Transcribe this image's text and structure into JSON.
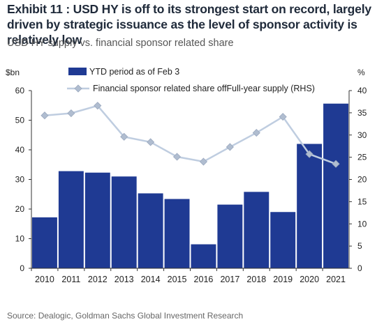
{
  "header": {
    "title": "Exhibit 11 : USD HY is off to its strongest start on record, largely driven by strategic issuance as the level of sponsor activity is relatively low",
    "subtitle": "USD HY supply vs. financial sponsor related share"
  },
  "footer": {
    "source": "Source: Dealogic, Goldman Sachs Global Investment Research"
  },
  "colors": {
    "bar": "#1f3a93",
    "line": "#bfcde0",
    "marker": "#b0bdd0"
  },
  "chart_data": {
    "type": "bar",
    "categories": [
      "2010",
      "2011",
      "2012",
      "2013",
      "2014",
      "2015",
      "2016",
      "2017",
      "2018",
      "2019",
      "2020",
      "2021"
    ],
    "series": [
      {
        "name": "YTD period as of Feb 3",
        "type": "bar",
        "axis": "left",
        "values": [
          17.2,
          32.8,
          32.3,
          31.0,
          25.3,
          23.4,
          8.1,
          21.5,
          25.8,
          19.0,
          42.0,
          55.6
        ]
      },
      {
        "name": "Financial sponsor related share offFull-year supply (RHS)",
        "type": "line",
        "axis": "right",
        "values": [
          34.4,
          34.9,
          36.6,
          29.6,
          28.4,
          25.1,
          24.0,
          27.3,
          30.5,
          34.1,
          25.7,
          23.5
        ]
      }
    ],
    "ylabel_left": "$bn",
    "ylabel_right": "%",
    "ylim_left": [
      0,
      60
    ],
    "ylim_right": [
      0,
      40
    ],
    "yticks_left": [
      "0",
      "10",
      "20",
      "30",
      "40",
      "50",
      "60"
    ],
    "yticks_right": [
      "0",
      "5",
      "10",
      "15",
      "20",
      "25",
      "30",
      "35",
      "40"
    ],
    "grid": false,
    "legend_position": "top"
  }
}
